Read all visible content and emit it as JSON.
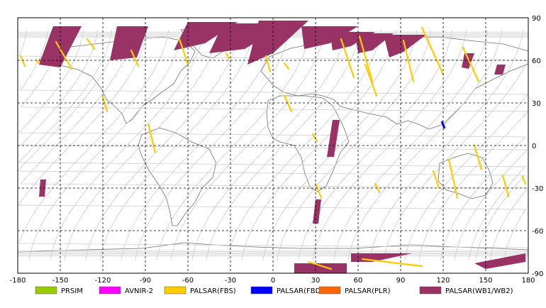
{
  "map": {
    "lon_range": [
      -180,
      180
    ],
    "lat_range": [
      -90,
      90
    ],
    "lon_ticks": [
      "-180",
      "-150",
      "-120",
      "-90",
      "-60",
      "-30",
      "0",
      "30",
      "60",
      "90",
      "120",
      "150",
      "180"
    ],
    "lat_ticks": [
      "90",
      "60",
      "30",
      "0",
      "-30",
      "-60",
      "-90"
    ],
    "grid": "dashed"
  },
  "legend": {
    "items": [
      {
        "label": "PRSIM",
        "color": "#99cc00"
      },
      {
        "label": "AVNIR-2",
        "color": "#ff00ff"
      },
      {
        "label": "PALSAR(FBS)",
        "color": "#ffcc00"
      },
      {
        "label": "PALSAR(FBD)",
        "color": "#0000ff"
      },
      {
        "label": "PALSAR(PLR)",
        "color": "#ff6600"
      },
      {
        "label": "PALSAR(WB1/WB2)",
        "color": "#993366"
      }
    ]
  },
  "colors": {
    "orbit_track": "#c8c8c8",
    "coastline": "#6e6e6e",
    "fbs": "#ffcc00",
    "fbd": "#0000ff",
    "wb": "#993366"
  },
  "coverage": {
    "wb_swaths": [
      [
        [
          -155,
          84
        ],
        [
          -135,
          84
        ],
        [
          -150,
          55
        ],
        [
          -165,
          57
        ]
      ],
      [
        [
          -110,
          84
        ],
        [
          -88,
          84
        ],
        [
          -96,
          62
        ],
        [
          -115,
          60
        ]
      ],
      [
        [
          -60,
          87
        ],
        [
          -25,
          87
        ],
        [
          -48,
          72
        ],
        [
          -70,
          67
        ]
      ],
      [
        [
          -35,
          86
        ],
        [
          10,
          86
        ],
        [
          -20,
          68
        ],
        [
          -45,
          65
        ]
      ],
      [
        [
          -10,
          88
        ],
        [
          25,
          88
        ],
        [
          0,
          65
        ],
        [
          -18,
          57
        ]
      ],
      [
        [
          20,
          84
        ],
        [
          60,
          84
        ],
        [
          40,
          72
        ],
        [
          22,
          68
        ]
      ],
      [
        [
          40,
          80
        ],
        [
          72,
          80
        ],
        [
          55,
          70
        ],
        [
          42,
          67
        ]
      ],
      [
        [
          58,
          79
        ],
        [
          85,
          79
        ],
        [
          70,
          67
        ],
        [
          60,
          65
        ]
      ],
      [
        [
          78,
          78
        ],
        [
          108,
          78
        ],
        [
          92,
          66
        ],
        [
          82,
          62
        ]
      ],
      [
        [
          135,
          65
        ],
        [
          142,
          65
        ],
        [
          138,
          54
        ],
        [
          133,
          55
        ]
      ],
      [
        [
          158,
          57
        ],
        [
          164,
          57
        ],
        [
          162,
          50
        ],
        [
          156,
          50
        ]
      ],
      [
        [
          42,
          18
        ],
        [
          47,
          18
        ],
        [
          43,
          -8
        ],
        [
          38,
          -8
        ]
      ],
      [
        [
          30,
          -38
        ],
        [
          34,
          -38
        ],
        [
          32,
          -55
        ],
        [
          28,
          -55
        ]
      ],
      [
        [
          -164,
          -24
        ],
        [
          -160,
          -24
        ],
        [
          -161,
          -36
        ],
        [
          -165,
          -36
        ]
      ],
      [
        [
          55,
          -76
        ],
        [
          98,
          -76
        ],
        [
          70,
          -82
        ],
        [
          55,
          -82
        ]
      ],
      [
        [
          15,
          -83
        ],
        [
          52,
          -83
        ],
        [
          52,
          -90
        ],
        [
          15,
          -90
        ]
      ],
      [
        [
          142,
          -83
        ],
        [
          178,
          -76
        ],
        [
          178,
          -82
        ],
        [
          150,
          -87
        ]
      ]
    ],
    "fbs_stripes": [
      [
        [
          -178,
          63
        ],
        [
          -175,
          56
        ]
      ],
      [
        [
          -167,
          60
        ],
        [
          -165,
          58
        ]
      ],
      [
        [
          -153,
          73
        ],
        [
          -142,
          54
        ]
      ],
      [
        [
          -131,
          75
        ],
        [
          -126,
          68
        ]
      ],
      [
        [
          -120,
          34
        ],
        [
          -117,
          24
        ]
      ],
      [
        [
          -100,
          67
        ],
        [
          -95,
          56
        ]
      ],
      [
        [
          -88,
          15
        ],
        [
          -83,
          -5
        ]
      ],
      [
        [
          -66,
          75
        ],
        [
          -60,
          57
        ]
      ],
      [
        [
          -33,
          65
        ],
        [
          -31,
          61
        ]
      ],
      [
        [
          -5,
          63
        ],
        [
          -2,
          52
        ]
      ],
      [
        [
          8,
          58
        ],
        [
          11,
          54
        ]
      ],
      [
        [
          8,
          35
        ],
        [
          13,
          24
        ]
      ],
      [
        [
          28,
          8
        ],
        [
          31,
          3
        ]
      ],
      [
        [
          30,
          -27
        ],
        [
          34,
          -37
        ]
      ],
      [
        [
          48,
          75
        ],
        [
          57,
          48
        ]
      ],
      [
        [
          61,
          77
        ],
        [
          70,
          45
        ]
      ],
      [
        [
          65,
          57
        ],
        [
          73,
          35
        ]
      ],
      [
        [
          72,
          -27
        ],
        [
          75,
          -33
        ]
      ],
      [
        [
          92,
          74
        ],
        [
          99,
          45
        ]
      ],
      [
        [
          105,
          83
        ],
        [
          120,
          50
        ]
      ],
      [
        [
          113,
          -18
        ],
        [
          117,
          -30
        ]
      ],
      [
        [
          134,
          69
        ],
        [
          145,
          45
        ]
      ],
      [
        [
          124,
          -10
        ],
        [
          130,
          -37
        ]
      ],
      [
        [
          142,
          0
        ],
        [
          147,
          -17
        ]
      ],
      [
        [
          162,
          -21
        ],
        [
          166,
          -36
        ]
      ],
      [
        [
          176,
          -22
        ],
        [
          178,
          -27
        ]
      ],
      [
        [
          25,
          -82
        ],
        [
          41,
          -87
        ]
      ],
      [
        [
          63,
          -80
        ],
        [
          105,
          -85
        ]
      ]
    ],
    "fbd_marks": [
      [
        [
          119,
          17
        ],
        [
          121,
          12
        ]
      ]
    ]
  }
}
